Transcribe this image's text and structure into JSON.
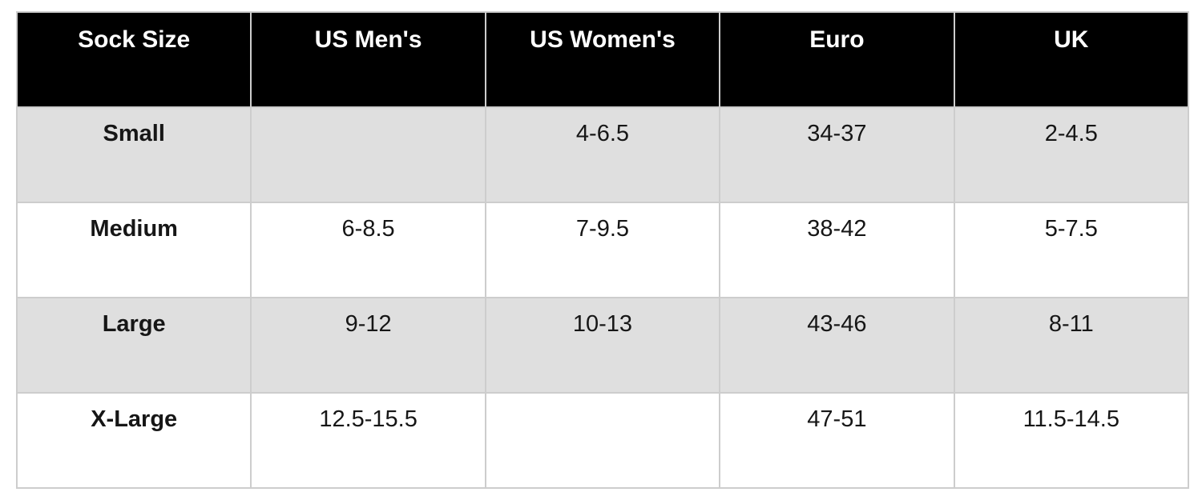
{
  "colors": {
    "page_bg": "#ffffff",
    "header_bg": "#000000",
    "header_text": "#ffffff",
    "row_bg": "#ffffff",
    "row_alt_bg": "#dfdfdf",
    "border_color": "#cdcdcd",
    "body_text": "#161616"
  },
  "table": {
    "headers": [
      "Sock Size",
      "US Men's",
      "US Women's",
      "Euro",
      "UK"
    ],
    "rows": [
      {
        "label": "Small",
        "cells": [
          "",
          "4-6.5",
          "34-37",
          "2-4.5"
        ]
      },
      {
        "label": "Medium",
        "cells": [
          "6-8.5",
          "7-9.5",
          "38-42",
          "5-7.5"
        ]
      },
      {
        "label": "Large",
        "cells": [
          "9-12",
          "10-13",
          "43-46",
          "8-11"
        ]
      },
      {
        "label": "X-Large",
        "cells": [
          "12.5-15.5",
          "",
          "47-51",
          "11.5-14.5"
        ]
      }
    ]
  },
  "chart_data": {
    "type": "table",
    "columns": [
      "Sock Size",
      "US Men's",
      "US Women's",
      "Euro",
      "UK"
    ],
    "rows": [
      [
        "Small",
        "",
        "4-6.5",
        "34-37",
        "2-4.5"
      ],
      [
        "Medium",
        "6-8.5",
        "7-9.5",
        "38-42",
        "5-7.5"
      ],
      [
        "Large",
        "9-12",
        "10-13",
        "43-46",
        "8-11"
      ],
      [
        "X-Large",
        "12.5-15.5",
        "",
        "47-51",
        "11.5-14.5"
      ]
    ]
  }
}
